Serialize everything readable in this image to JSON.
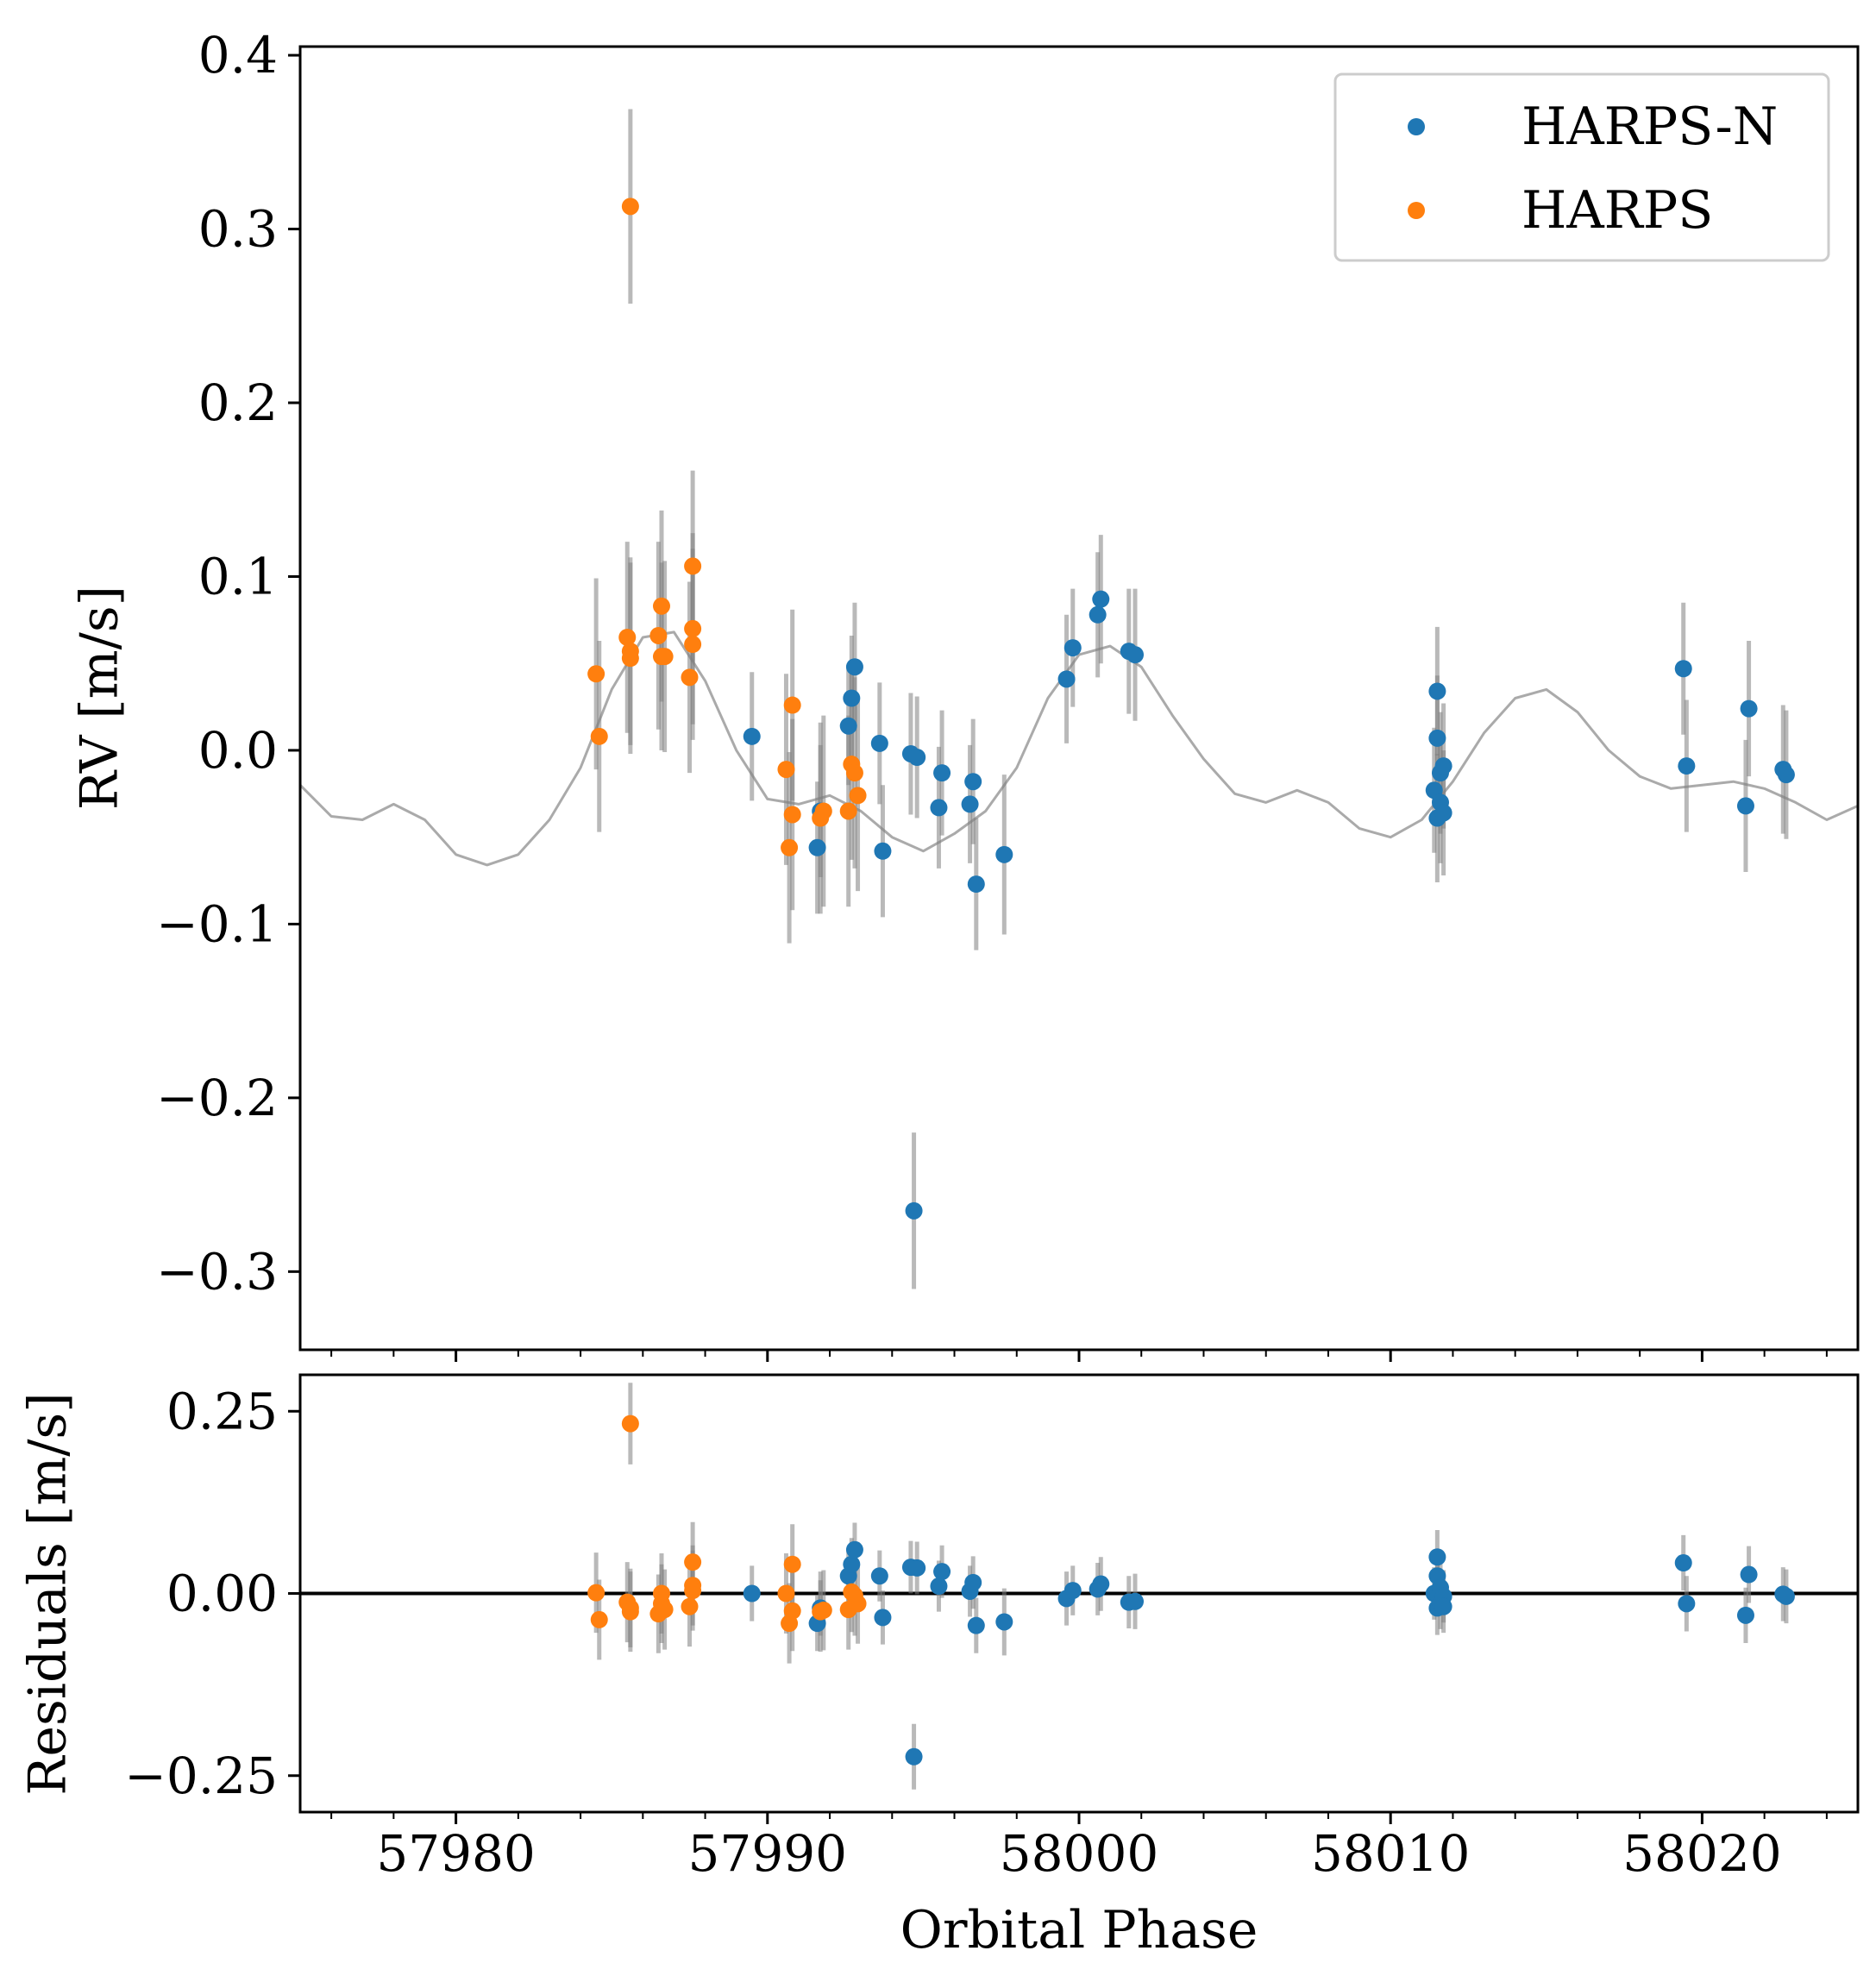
{
  "chart_data": [
    {
      "panel": "rv",
      "type": "scatter",
      "ylabel": "RV [m/s]",
      "xlabel": "",
      "xlim": [
        57975,
        58025
      ],
      "ylim": [
        -0.345,
        0.405
      ],
      "yticks": [
        -0.3,
        -0.2,
        -0.1,
        0.0,
        0.1,
        0.2,
        0.3,
        0.4
      ],
      "ytick_labels": [
        "−0.3",
        "−0.2",
        "−0.1",
        "0.0",
        "0.1",
        "0.2",
        "0.3",
        "0.4"
      ],
      "legend": {
        "placement": "top-right",
        "entries": [
          "HARPS-N",
          "HARPS"
        ]
      },
      "series": [
        {
          "name": "HARPS-N",
          "color": "#1f77b4",
          "points": [
            {
              "x": 57989.5,
              "y": 0.008,
              "err": 0.037
            },
            {
              "x": 57991.6,
              "y": -0.056,
              "err": 0.038
            },
            {
              "x": 57991.7,
              "y": -0.035,
              "err": 0.038
            },
            {
              "x": 57992.6,
              "y": 0.014,
              "err": 0.034
            },
            {
              "x": 57992.7,
              "y": 0.03,
              "err": 0.036
            },
            {
              "x": 57992.8,
              "y": 0.048,
              "err": 0.037
            },
            {
              "x": 57993.6,
              "y": 0.004,
              "err": 0.035
            },
            {
              "x": 57993.7,
              "y": -0.058,
              "err": 0.038
            },
            {
              "x": 57994.6,
              "y": -0.002,
              "err": 0.035
            },
            {
              "x": 57994.7,
              "y": -0.265,
              "err": 0.045
            },
            {
              "x": 57994.8,
              "y": -0.004,
              "err": 0.035
            },
            {
              "x": 57995.5,
              "y": -0.033,
              "err": 0.035
            },
            {
              "x": 57995.6,
              "y": -0.013,
              "err": 0.036
            },
            {
              "x": 57996.5,
              "y": -0.031,
              "err": 0.034
            },
            {
              "x": 57996.6,
              "y": -0.018,
              "err": 0.036
            },
            {
              "x": 57996.7,
              "y": -0.077,
              "err": 0.038
            },
            {
              "x": 57997.6,
              "y": -0.06,
              "err": 0.046
            },
            {
              "x": 57999.6,
              "y": 0.041,
              "err": 0.037
            },
            {
              "x": 57999.8,
              "y": 0.059,
              "err": 0.034
            },
            {
              "x": 58000.6,
              "y": 0.078,
              "err": 0.036
            },
            {
              "x": 58000.7,
              "y": 0.087,
              "err": 0.037
            },
            {
              "x": 58001.6,
              "y": 0.057,
              "err": 0.036
            },
            {
              "x": 58001.8,
              "y": 0.055,
              "err": 0.038
            },
            {
              "x": 58011.4,
              "y": -0.023,
              "err": 0.036
            },
            {
              "x": 58011.5,
              "y": 0.034,
              "err": 0.037
            },
            {
              "x": 58011.5,
              "y": 0.007,
              "err": 0.036
            },
            {
              "x": 58011.5,
              "y": -0.039,
              "err": 0.037
            },
            {
              "x": 58011.6,
              "y": -0.013,
              "err": 0.035
            },
            {
              "x": 58011.6,
              "y": -0.03,
              "err": 0.035
            },
            {
              "x": 58011.7,
              "y": -0.009,
              "err": 0.036
            },
            {
              "x": 58011.7,
              "y": -0.036,
              "err": 0.036
            },
            {
              "x": 58019.4,
              "y": 0.047,
              "err": 0.038
            },
            {
              "x": 58019.5,
              "y": -0.009,
              "err": 0.038
            },
            {
              "x": 58021.4,
              "y": -0.032,
              "err": 0.038
            },
            {
              "x": 58021.5,
              "y": 0.024,
              "err": 0.039
            },
            {
              "x": 58022.6,
              "y": -0.011,
              "err": 0.037
            },
            {
              "x": 58022.7,
              "y": -0.014,
              "err": 0.037
            }
          ]
        },
        {
          "name": "HARPS",
          "color": "#ff7f0e",
          "points": [
            {
              "x": 57984.5,
              "y": 0.044,
              "err": 0.055
            },
            {
              "x": 57984.6,
              "y": 0.008,
              "err": 0.055
            },
            {
              "x": 57985.5,
              "y": 0.065,
              "err": 0.055
            },
            {
              "x": 57985.6,
              "y": 0.313,
              "err": 0.056
            },
            {
              "x": 57985.6,
              "y": 0.057,
              "err": 0.054
            },
            {
              "x": 57985.6,
              "y": 0.053,
              "err": 0.055
            },
            {
              "x": 57986.5,
              "y": 0.066,
              "err": 0.054
            },
            {
              "x": 57986.6,
              "y": 0.083,
              "err": 0.055
            },
            {
              "x": 57986.6,
              "y": 0.054,
              "err": 0.054
            },
            {
              "x": 57986.7,
              "y": 0.054,
              "err": 0.055
            },
            {
              "x": 57987.5,
              "y": 0.042,
              "err": 0.055
            },
            {
              "x": 57987.6,
              "y": 0.106,
              "err": 0.055
            },
            {
              "x": 57987.6,
              "y": 0.07,
              "err": 0.055
            },
            {
              "x": 57987.6,
              "y": 0.061,
              "err": 0.055
            },
            {
              "x": 57990.6,
              "y": -0.011,
              "err": 0.055
            },
            {
              "x": 57990.7,
              "y": -0.056,
              "err": 0.055
            },
            {
              "x": 57990.8,
              "y": -0.037,
              "err": 0.055
            },
            {
              "x": 57990.8,
              "y": 0.026,
              "err": 0.055
            },
            {
              "x": 57991.7,
              "y": -0.039,
              "err": 0.055
            },
            {
              "x": 57991.8,
              "y": -0.035,
              "err": 0.055
            },
            {
              "x": 57992.6,
              "y": -0.035,
              "err": 0.055
            },
            {
              "x": 57992.7,
              "y": -0.008,
              "err": 0.055
            },
            {
              "x": 57992.8,
              "y": -0.013,
              "err": 0.055
            },
            {
              "x": 57992.9,
              "y": -0.026,
              "err": 0.055
            }
          ]
        },
        {
          "name": "",
          "kind": "model",
          "color": "#aaaaaa",
          "x": [
            57975,
            57976,
            57977,
            57978,
            57979,
            57980,
            57981,
            57982,
            57983,
            57984,
            57985,
            57986,
            57987,
            57988,
            57989,
            57990,
            57991,
            57992,
            57993,
            57994,
            57995,
            57996,
            57997,
            57998,
            57999,
            58000,
            58001,
            58002,
            58003,
            58004,
            58005,
            58006,
            58007,
            58008,
            58009,
            58010,
            58011,
            58012,
            58013,
            58014,
            58015,
            58016,
            58017,
            58018,
            58019,
            58020,
            58021,
            58022,
            58023,
            58024,
            58025
          ],
          "y": [
            -0.02,
            -0.038,
            -0.04,
            -0.031,
            -0.04,
            -0.06,
            -0.066,
            -0.06,
            -0.04,
            -0.01,
            0.035,
            0.065,
            0.068,
            0.04,
            0.0,
            -0.028,
            -0.031,
            -0.026,
            -0.035,
            -0.05,
            -0.058,
            -0.048,
            -0.035,
            -0.01,
            0.03,
            0.055,
            0.06,
            0.048,
            0.02,
            -0.005,
            -0.025,
            -0.03,
            -0.023,
            -0.03,
            -0.045,
            -0.05,
            -0.04,
            -0.018,
            0.01,
            0.03,
            0.035,
            0.022,
            0.0,
            -0.015,
            -0.022,
            -0.02,
            -0.018,
            -0.022,
            -0.03,
            -0.04,
            -0.032
          ]
        }
      ]
    },
    {
      "panel": "residuals",
      "type": "scatter",
      "xlabel": "Orbital Phase",
      "ylabel": "Residuals [m/s]",
      "xlim": [
        57975,
        58025
      ],
      "ylim": [
        -0.3,
        0.3
      ],
      "xticks": [
        57980,
        57990,
        58000,
        58010,
        58020
      ],
      "xtick_labels": [
        "57980",
        "57990",
        "58000",
        "58010",
        "58020"
      ],
      "yticks": [
        -0.25,
        0.0,
        0.25
      ],
      "ytick_labels": [
        "−0.25",
        "0.00",
        "0.25"
      ],
      "zero_line": true,
      "series": [
        {
          "name": "HARPS-N",
          "color": "#1f77b4",
          "points": [
            {
              "x": 57989.5,
              "y": 0.0,
              "err": 0.038
            },
            {
              "x": 57991.6,
              "y": -0.041,
              "err": 0.038
            },
            {
              "x": 57991.7,
              "y": -0.02,
              "err": 0.038
            },
            {
              "x": 57992.6,
              "y": 0.024,
              "err": 0.036
            },
            {
              "x": 57992.7,
              "y": 0.04,
              "err": 0.036
            },
            {
              "x": 57992.8,
              "y": 0.06,
              "err": 0.037
            },
            {
              "x": 57993.6,
              "y": 0.024,
              "err": 0.035
            },
            {
              "x": 57993.7,
              "y": -0.033,
              "err": 0.037
            },
            {
              "x": 57994.6,
              "y": 0.036,
              "err": 0.036
            },
            {
              "x": 57994.7,
              "y": -0.224,
              "err": 0.045
            },
            {
              "x": 57994.8,
              "y": 0.035,
              "err": 0.036
            },
            {
              "x": 57995.5,
              "y": 0.01,
              "err": 0.035
            },
            {
              "x": 57995.6,
              "y": 0.03,
              "err": 0.036
            },
            {
              "x": 57996.5,
              "y": 0.003,
              "err": 0.035
            },
            {
              "x": 57996.6,
              "y": 0.015,
              "err": 0.036
            },
            {
              "x": 57996.7,
              "y": -0.044,
              "err": 0.038
            },
            {
              "x": 57997.6,
              "y": -0.039,
              "err": 0.046
            },
            {
              "x": 57999.6,
              "y": -0.007,
              "err": 0.037
            },
            {
              "x": 57999.8,
              "y": 0.004,
              "err": 0.034
            },
            {
              "x": 58000.6,
              "y": 0.006,
              "err": 0.036
            },
            {
              "x": 58000.7,
              "y": 0.013,
              "err": 0.037
            },
            {
              "x": 58001.6,
              "y": -0.012,
              "err": 0.036
            },
            {
              "x": 58001.8,
              "y": -0.011,
              "err": 0.038
            },
            {
              "x": 58011.4,
              "y": 0.0,
              "err": 0.036
            },
            {
              "x": 58011.5,
              "y": 0.05,
              "err": 0.037
            },
            {
              "x": 58011.5,
              "y": 0.024,
              "err": 0.036
            },
            {
              "x": 58011.5,
              "y": -0.02,
              "err": 0.037
            },
            {
              "x": 58011.6,
              "y": 0.008,
              "err": 0.035
            },
            {
              "x": 58011.6,
              "y": -0.014,
              "err": 0.035
            },
            {
              "x": 58011.7,
              "y": -0.004,
              "err": 0.036
            },
            {
              "x": 58011.7,
              "y": -0.018,
              "err": 0.036
            },
            {
              "x": 58019.4,
              "y": 0.042,
              "err": 0.038
            },
            {
              "x": 58019.5,
              "y": -0.014,
              "err": 0.038
            },
            {
              "x": 58021.4,
              "y": -0.03,
              "err": 0.038
            },
            {
              "x": 58021.5,
              "y": 0.026,
              "err": 0.039
            },
            {
              "x": 58022.6,
              "y": -0.001,
              "err": 0.037
            },
            {
              "x": 58022.7,
              "y": -0.004,
              "err": 0.037
            }
          ]
        },
        {
          "name": "HARPS",
          "color": "#ff7f0e",
          "points": [
            {
              "x": 57984.5,
              "y": 0.001,
              "err": 0.055
            },
            {
              "x": 57984.6,
              "y": -0.036,
              "err": 0.055
            },
            {
              "x": 57985.5,
              "y": -0.012,
              "err": 0.055
            },
            {
              "x": 57985.6,
              "y": 0.233,
              "err": 0.056
            },
            {
              "x": 57985.6,
              "y": -0.02,
              "err": 0.054
            },
            {
              "x": 57985.6,
              "y": -0.025,
              "err": 0.055
            },
            {
              "x": 57986.5,
              "y": -0.028,
              "err": 0.054
            },
            {
              "x": 57986.6,
              "y": 0.0,
              "err": 0.055
            },
            {
              "x": 57986.6,
              "y": -0.014,
              "err": 0.054
            },
            {
              "x": 57986.7,
              "y": -0.022,
              "err": 0.055
            },
            {
              "x": 57987.5,
              "y": -0.018,
              "err": 0.055
            },
            {
              "x": 57987.6,
              "y": 0.043,
              "err": 0.055
            },
            {
              "x": 57987.6,
              "y": 0.011,
              "err": 0.055
            },
            {
              "x": 57987.6,
              "y": 0.004,
              "err": 0.055
            },
            {
              "x": 57990.6,
              "y": 0.0,
              "err": 0.055
            },
            {
              "x": 57990.7,
              "y": -0.041,
              "err": 0.055
            },
            {
              "x": 57990.8,
              "y": -0.024,
              "err": 0.055
            },
            {
              "x": 57990.8,
              "y": 0.04,
              "err": 0.055
            },
            {
              "x": 57991.7,
              "y": -0.025,
              "err": 0.055
            },
            {
              "x": 57991.8,
              "y": -0.023,
              "err": 0.055
            },
            {
              "x": 57992.6,
              "y": -0.022,
              "err": 0.055
            },
            {
              "x": 57992.7,
              "y": 0.002,
              "err": 0.055
            },
            {
              "x": 57992.8,
              "y": -0.003,
              "err": 0.055
            },
            {
              "x": 57992.9,
              "y": -0.014,
              "err": 0.055
            }
          ]
        }
      ]
    }
  ]
}
